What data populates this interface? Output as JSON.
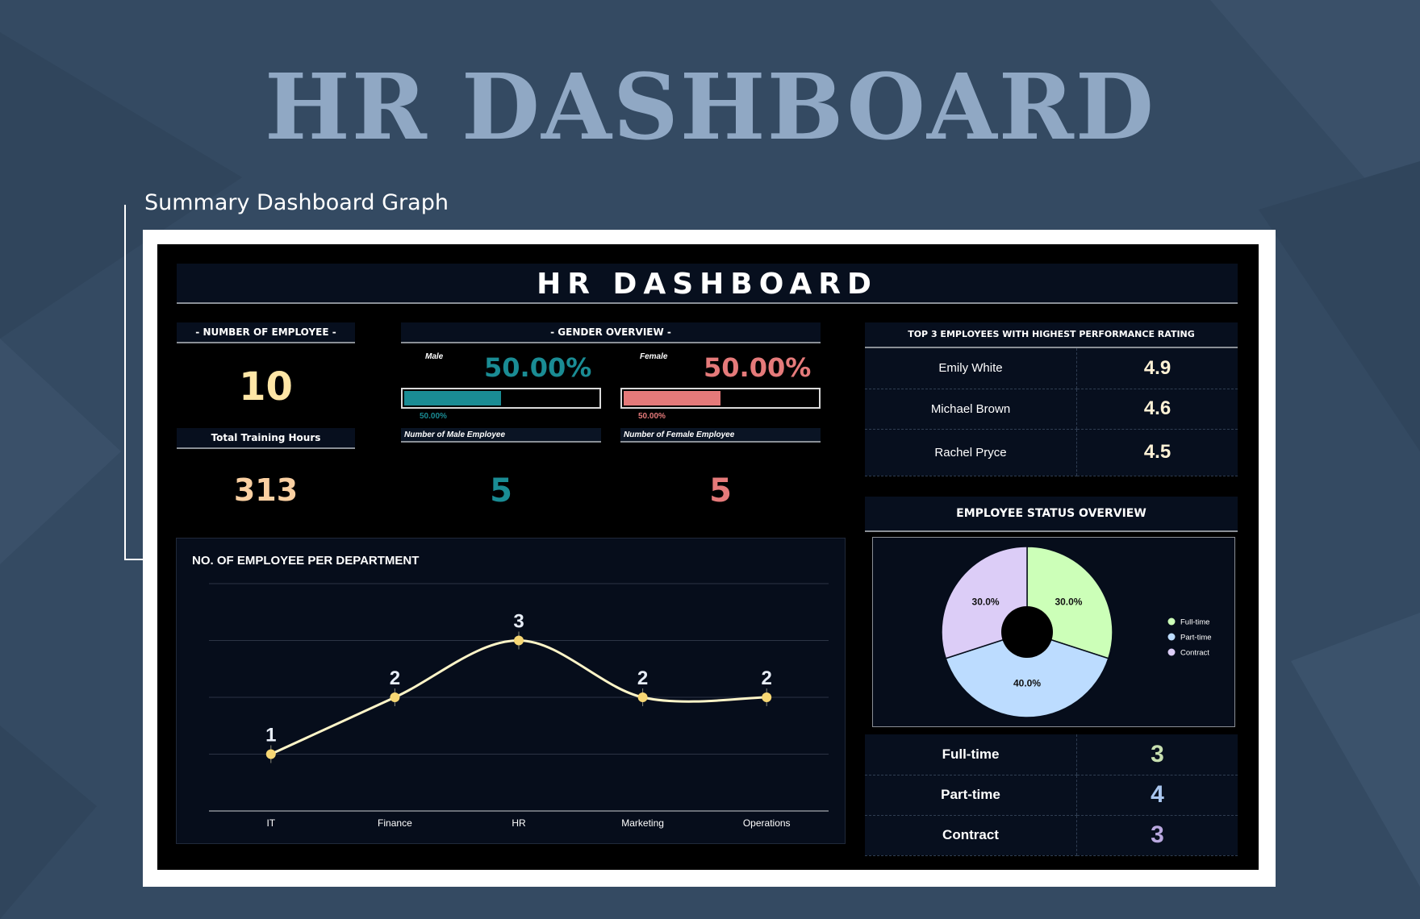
{
  "page": {
    "hero_title": "HR DASHBOARD",
    "subtitle": "Summary Dashboard Graph"
  },
  "dashboard": {
    "title": "HR DASHBOARD",
    "employees": {
      "label": "- NUMBER OF EMPLOYEE -",
      "value": "10"
    },
    "training": {
      "label": "Total Training Hours",
      "value": "313"
    },
    "gender": {
      "label": "- GENDER OVERVIEW -",
      "male": {
        "label": "Male",
        "pct": "50.00%",
        "bar_pct": "50.00%",
        "fraction": 0.5,
        "count_label": "Number of Male Employee",
        "count": "5",
        "color": "#1a8c94"
      },
      "female": {
        "label": "Female",
        "pct": "50.00%",
        "bar_pct": "50.00%",
        "fraction": 0.5,
        "count_label": "Number of Female Employee",
        "count": "5",
        "color": "#e57a7a"
      }
    },
    "top3": {
      "label": "TOP 3 EMPLOYEES WITH HIGHEST PERFORMANCE RATING",
      "rows": [
        {
          "name": "Emily White",
          "rating": "4.9"
        },
        {
          "name": "Michael Brown",
          "rating": "4.6"
        },
        {
          "name": "Rachel Pryce",
          "rating": "4.5"
        }
      ]
    },
    "status": {
      "label": "EMPLOYEE STATUS OVERVIEW",
      "rows": [
        {
          "name": "Full-time",
          "count": "3",
          "color": "#c7dfb0"
        },
        {
          "name": "Part-time",
          "count": "4",
          "color": "#a9c6ee"
        },
        {
          "name": "Contract",
          "count": "3",
          "color": "#b9a8df"
        }
      ]
    }
  },
  "chart_data": [
    {
      "type": "line",
      "title": "NO. OF EMPLOYEE PER DEPARTMENT",
      "categories": [
        "IT",
        "Finance",
        "HR",
        "Marketing",
        "Operations"
      ],
      "values": [
        1,
        2,
        3,
        2,
        2
      ],
      "ylim": [
        0,
        4
      ],
      "grid": true,
      "color": "#fff5c8",
      "marker_color": "#f7d774"
    },
    {
      "type": "pie",
      "labels": [
        "Full-time",
        "Part-time",
        "Contract"
      ],
      "values": [
        30.0,
        40.0,
        30.0
      ],
      "value_labels": [
        "30.0%",
        "40.0%",
        "30.0%"
      ],
      "colors": [
        "#ccffb8",
        "#bcdcff",
        "#dccdf7"
      ],
      "legend": "right"
    }
  ]
}
